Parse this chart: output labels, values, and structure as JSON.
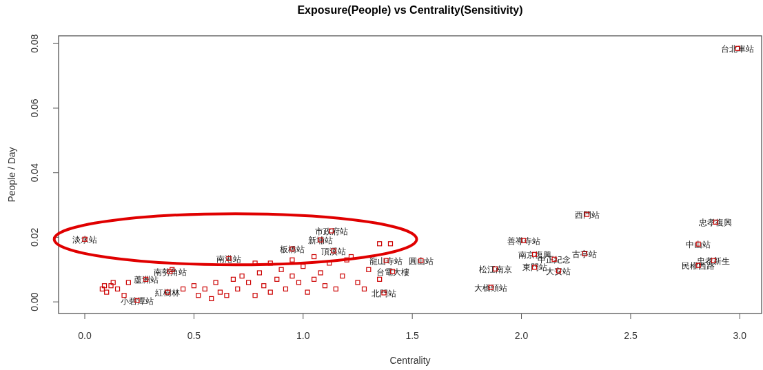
{
  "chart_data": {
    "type": "scatter",
    "title": "Exposure(People) vs Centrality(Sensitivity)",
    "xlabel": "Centrality",
    "ylabel": "People / Day",
    "xlim": [
      -0.12,
      3.1
    ],
    "ylim": [
      -0.0036,
      0.0824
    ],
    "xticks": [
      {
        "value": 0,
        "label": "0.0"
      },
      {
        "value": 0.5,
        "label": "0.5"
      },
      {
        "value": 1,
        "label": "1.0"
      },
      {
        "value": 1.5,
        "label": "1.5"
      },
      {
        "value": 2,
        "label": "2.0"
      },
      {
        "value": 2.5,
        "label": "2.5"
      },
      {
        "value": 3,
        "label": "3.0"
      }
    ],
    "yticks": [
      {
        "value": 0,
        "label": "0.00"
      },
      {
        "value": 0.02,
        "label": "0.02"
      },
      {
        "value": 0.04,
        "label": "0.04"
      },
      {
        "value": 0.06,
        "label": "0.06"
      },
      {
        "value": 0.08,
        "label": "0.08"
      }
    ],
    "marker": "square",
    "series": [
      {
        "color": "#cc0000",
        "x": [
          0.0,
          0.66,
          1.13,
          1.08,
          1.54,
          1.37,
          0.39,
          0.28,
          0.24,
          0.38,
          2.3,
          2.01,
          2.06,
          2.15,
          2.29,
          2.06,
          1.88,
          2.17,
          1.86,
          2.89,
          2.81,
          2.88,
          2.81,
          2.99,
          0.95,
          1.14,
          1.41,
          1.38,
          0.08,
          0.1,
          0.12,
          0.15,
          0.18,
          0.2,
          0.13,
          0.09,
          0.45,
          0.5,
          0.52,
          0.55,
          0.58,
          0.6,
          0.62,
          0.65,
          0.68,
          0.7,
          0.72,
          0.75,
          0.78,
          0.8,
          0.82,
          0.85,
          0.88,
          0.9,
          0.92,
          0.95,
          0.98,
          1.0,
          1.02,
          1.05,
          1.08,
          1.1,
          1.12,
          1.15,
          1.18,
          1.2,
          1.25,
          1.3,
          1.35,
          1.28,
          1.05,
          1.35,
          1.22,
          0.78,
          0.85,
          0.95,
          1.4,
          0.4
        ],
        "values": [
          0.0194,
          0.0134,
          0.022,
          0.0192,
          0.0128,
          0.0028,
          0.0094,
          0.007,
          0.0004,
          0.003,
          0.0271,
          0.019,
          0.0147,
          0.0132,
          0.0149,
          0.0107,
          0.0102,
          0.0096,
          0.0045,
          0.0247,
          0.0179,
          0.0128,
          0.0113,
          0.0785,
          0.0164,
          0.0158,
          0.0094,
          0.0128,
          0.004,
          0.003,
          0.005,
          0.004,
          0.002,
          0.006,
          0.006,
          0.005,
          0.004,
          0.005,
          0.002,
          0.004,
          0.001,
          0.006,
          0.003,
          0.002,
          0.007,
          0.004,
          0.008,
          0.006,
          0.002,
          0.009,
          0.005,
          0.003,
          0.007,
          0.01,
          0.004,
          0.008,
          0.006,
          0.011,
          0.003,
          0.007,
          0.009,
          0.005,
          0.012,
          0.004,
          0.008,
          0.013,
          0.006,
          0.01,
          0.007,
          0.004,
          0.014,
          0.018,
          0.014,
          0.012,
          0.012,
          0.013,
          0.018,
          0.01
        ]
      }
    ],
    "annotations": [
      {
        "text": "淡水站",
        "x": 0.0,
        "y": 0.0194
      },
      {
        "text": "南港站",
        "x": 0.66,
        "y": 0.0134
      },
      {
        "text": "市政府站",
        "x": 1.13,
        "y": 0.022
      },
      {
        "text": "新埔站",
        "x": 1.08,
        "y": 0.0192
      },
      {
        "text": "圓山站",
        "x": 1.54,
        "y": 0.0128
      },
      {
        "text": "北門站",
        "x": 1.37,
        "y": 0.0028
      },
      {
        "text": "南勢角站",
        "x": 0.39,
        "y": 0.0094
      },
      {
        "text": "蘆洲站",
        "x": 0.28,
        "y": 0.007
      },
      {
        "text": "小碧潭站",
        "x": 0.24,
        "y": 0.0004
      },
      {
        "text": "紅樹林",
        "x": 0.38,
        "y": 0.003
      },
      {
        "text": "西門站",
        "x": 2.3,
        "y": 0.0271
      },
      {
        "text": "善導寺站",
        "x": 2.01,
        "y": 0.019
      },
      {
        "text": "南京復興",
        "x": 2.06,
        "y": 0.0147
      },
      {
        "text": "中正紀念",
        "x": 2.15,
        "y": 0.0132
      },
      {
        "text": "古亭站",
        "x": 2.29,
        "y": 0.0149
      },
      {
        "text": "東門站",
        "x": 2.06,
        "y": 0.0107
      },
      {
        "text": "松江南京",
        "x": 1.88,
        "y": 0.0102
      },
      {
        "text": "大安站",
        "x": 2.17,
        "y": 0.0096
      },
      {
        "text": "大橋頭站",
        "x": 1.86,
        "y": 0.0045
      },
      {
        "text": "忠孝復興",
        "x": 2.89,
        "y": 0.0247
      },
      {
        "text": "中山站",
        "x": 2.81,
        "y": 0.0179
      },
      {
        "text": "忠孝新生",
        "x": 2.88,
        "y": 0.0128
      },
      {
        "text": "民權西路",
        "x": 2.81,
        "y": 0.0113
      },
      {
        "text": "台北車站",
        "x": 2.99,
        "y": 0.0785
      },
      {
        "text": "板橋站",
        "x": 0.95,
        "y": 0.0164
      },
      {
        "text": "頂溪站",
        "x": 1.14,
        "y": 0.0158
      },
      {
        "text": "台電大樓",
        "x": 1.41,
        "y": 0.0094
      },
      {
        "text": "龍山寺站",
        "x": 1.38,
        "y": 0.0128
      }
    ]
  }
}
